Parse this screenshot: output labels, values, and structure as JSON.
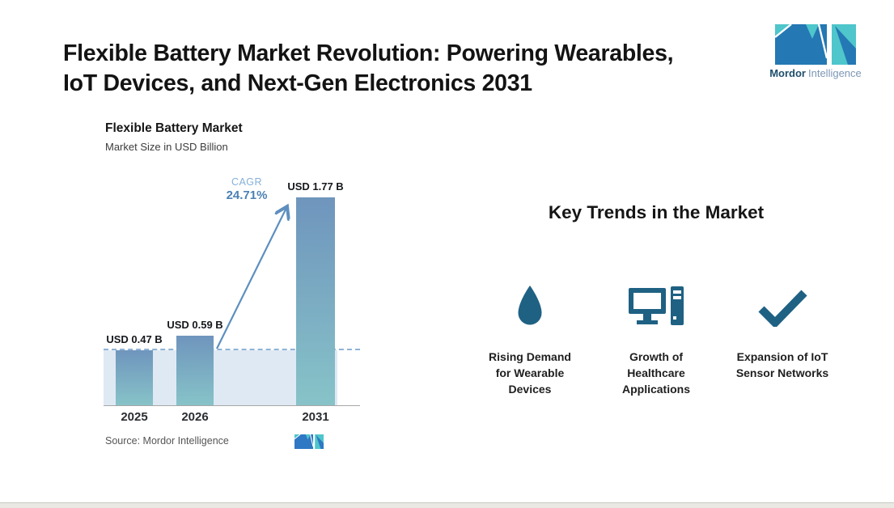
{
  "header": {
    "title_line1": "Flexible Battery Market Revolution: Powering Wearables,",
    "title_line2": "IoT Devices, and Next-Gen Electronics 2031",
    "brand": {
      "name_bold": "Mordor",
      "name_light": "Intelligence"
    }
  },
  "chart_data": {
    "type": "bar",
    "title": "Flexible Battery Market",
    "subtitle": "Market Size in USD Billion",
    "categories": [
      "2025",
      "2026",
      "2031"
    ],
    "values": [
      0.47,
      0.59,
      1.77
    ],
    "value_labels": [
      "USD 0.47 B",
      "USD 0.59 B",
      "USD 1.77 B"
    ],
    "unit": "USD Billion",
    "ylim": [
      0,
      2
    ],
    "grid": false,
    "legend": "none",
    "cagr": {
      "label": "CAGR",
      "value": "24.71%"
    },
    "annotations": [
      "dashed baseline at 2025 level",
      "growth arrow from 2026 to 2031"
    ],
    "source": "Source: Mordor Intelligence"
  },
  "trends": {
    "heading": "Key Trends in the Market",
    "items": [
      {
        "icon": "water-drop-icon",
        "lines": [
          "Rising Demand",
          "for Wearable",
          "Devices"
        ]
      },
      {
        "icon": "desktop-computer-icon",
        "lines": [
          "Growth of",
          "Healthcare",
          "Applications"
        ]
      },
      {
        "icon": "checkmark-icon",
        "lines": [
          "Expansion of IoT",
          "Sensor Networks",
          ""
        ]
      }
    ]
  },
  "colors": {
    "brand_teal": "#4EC6CB",
    "brand_blue": "#2478B4",
    "icon_blue": "#1F6183",
    "bar_gradient_top": "#6F95BD",
    "bar_gradient_bottom": "#87C3C8",
    "cagr_text": "#4B80B4",
    "dashed_line": "#8FB4D6",
    "baseline_band": "#DFE9F3"
  }
}
